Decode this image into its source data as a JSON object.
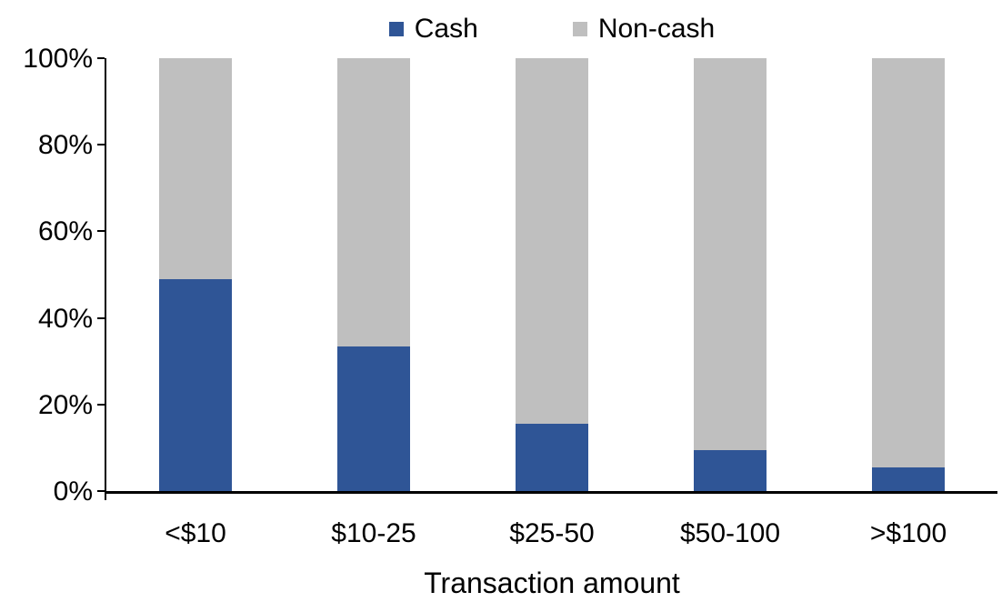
{
  "chart_data": {
    "type": "bar",
    "stacked": true,
    "percent_stacked": true,
    "title": "",
    "xlabel": "Transaction amount",
    "ylabel": "",
    "categories": [
      "<$10",
      "$10-25",
      "$25-50",
      "$50-100",
      ">$100"
    ],
    "series": [
      {
        "name": "Cash",
        "color": "#2F5596",
        "values": [
          49,
          33.5,
          15.5,
          9.5,
          5.5
        ]
      },
      {
        "name": "Non-cash",
        "color": "#BFBFBF",
        "values": [
          51,
          66.5,
          84.5,
          90.5,
          94.5
        ]
      }
    ],
    "ylim": [
      0,
      100
    ],
    "yticks": [
      {
        "value": 0,
        "label": "0%"
      },
      {
        "value": 20,
        "label": "20%"
      },
      {
        "value": 40,
        "label": "40%"
      },
      {
        "value": 60,
        "label": "60%"
      },
      {
        "value": 80,
        "label": "80%"
      },
      {
        "value": 100,
        "label": "100%"
      }
    ],
    "grid": false,
    "legend_position": "top",
    "axis_color": "#000000",
    "background_color": "#FFFFFF"
  }
}
